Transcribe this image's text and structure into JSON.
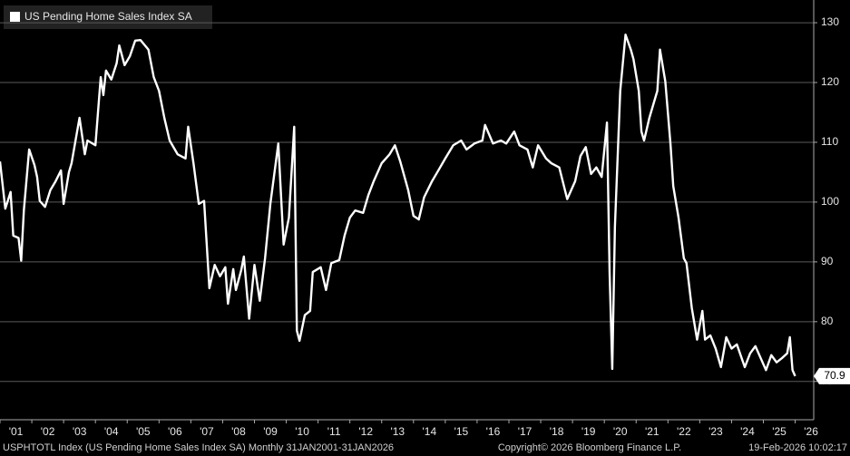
{
  "chart_data": {
    "type": "line",
    "series": [
      {
        "name": "US Pending Home Sales Index SA",
        "color": "#ffffff",
        "x": [
          "2001-01",
          "2001-03",
          "2001-05",
          "2001-06",
          "2001-08",
          "2001-09",
          "2001-10",
          "2001-12",
          "2002-02",
          "2002-03",
          "2002-04",
          "2002-06",
          "2002-08",
          "2002-10",
          "2002-12",
          "2003-01",
          "2003-03",
          "2003-04",
          "2003-07",
          "2003-09",
          "2003-10",
          "2004-01",
          "2004-03",
          "2004-04",
          "2004-05",
          "2004-07",
          "2004-09",
          "2004-10",
          "2004-12",
          "2005-02",
          "2005-04",
          "2005-06",
          "2005-09",
          "2005-11",
          "2006-01",
          "2006-03",
          "2006-05",
          "2006-08",
          "2006-11",
          "2006-12",
          "2007-02",
          "2007-04",
          "2007-06",
          "2007-08",
          "2007-10",
          "2007-12",
          "2008-02",
          "2008-03",
          "2008-05",
          "2008-06",
          "2008-08",
          "2008-09",
          "2008-11",
          "2009-01",
          "2009-03",
          "2009-05",
          "2009-07",
          "2009-10",
          "2009-12",
          "2010-02",
          "2010-04",
          "2010-05",
          "2010-06",
          "2010-08",
          "2010-10",
          "2010-11",
          "2011-02",
          "2011-04",
          "2011-06",
          "2011-09",
          "2011-11",
          "2012-01",
          "2012-03",
          "2012-06",
          "2012-08",
          "2012-10",
          "2013-01",
          "2013-04",
          "2013-06",
          "2013-08",
          "2013-11",
          "2014-01",
          "2014-03",
          "2014-05",
          "2014-08",
          "2014-10",
          "2015-01",
          "2015-04",
          "2015-07",
          "2015-09",
          "2015-12",
          "2016-03",
          "2016-04",
          "2016-07",
          "2016-10",
          "2016-12",
          "2017-03",
          "2017-05",
          "2017-08",
          "2017-10",
          "2017-12",
          "2018-03",
          "2018-05",
          "2018-08",
          "2018-11",
          "2019-02",
          "2019-04",
          "2019-06",
          "2019-08",
          "2019-10",
          "2019-12",
          "2020-02",
          "2020-03",
          "2020-04",
          "2020-05",
          "2020-07",
          "2020-09",
          "2020-11",
          "2020-12",
          "2021-02",
          "2021-03",
          "2021-04",
          "2021-06",
          "2021-08",
          "2021-09",
          "2021-10",
          "2021-12",
          "2022-02",
          "2022-03",
          "2022-05",
          "2022-07",
          "2022-08",
          "2022-10",
          "2022-12",
          "2023-02",
          "2023-03",
          "2023-05",
          "2023-07",
          "2023-09",
          "2023-11",
          "2024-01",
          "2024-03",
          "2024-06",
          "2024-08",
          "2024-10",
          "2024-12",
          "2025-02",
          "2025-04",
          "2025-06",
          "2025-08",
          "2025-10",
          "2025-11",
          "2025-12",
          "2026-01"
        ],
        "values": [
          106.8,
          98.9,
          101.7,
          94.4,
          94,
          90.2,
          98.6,
          108.8,
          106.2,
          104.2,
          100.2,
          99.2,
          102,
          103.5,
          105.3,
          99.7,
          105,
          106.5,
          114.1,
          108,
          110.3,
          109.5,
          120.9,
          117.9,
          122,
          120.5,
          123.2,
          126.2,
          122.9,
          124.4,
          127,
          127.1,
          125.5,
          120.9,
          118.6,
          114.1,
          110.3,
          108,
          107.3,
          112.6,
          106.5,
          99.7,
          100.2,
          85.6,
          89.5,
          87.6,
          89.1,
          83,
          88.8,
          85.3,
          88.6,
          90.9,
          80.5,
          89.5,
          83.5,
          90.6,
          99.7,
          109.8,
          92.9,
          97.4,
          112.6,
          78.5,
          76.8,
          81.1,
          81.8,
          88.3,
          89.1,
          85.3,
          89.8,
          90.3,
          94.4,
          97.4,
          98.6,
          98.2,
          101.2,
          103.5,
          106.5,
          108,
          109.5,
          106.8,
          102,
          97.7,
          97.1,
          100.8,
          103.5,
          105,
          107.3,
          109.5,
          110.3,
          108.8,
          109.8,
          110.3,
          112.9,
          109.8,
          110.3,
          109.8,
          111.8,
          109.5,
          108.8,
          105.8,
          109.5,
          107.3,
          106.5,
          105.8,
          100.5,
          103.5,
          107.7,
          109.2,
          104.7,
          105.8,
          104.2,
          113.3,
          88,
          72.1,
          95.9,
          118.6,
          128,
          125.5,
          123.9,
          118.6,
          111.8,
          110.3,
          114.1,
          117.1,
          118.6,
          125.5,
          120.2,
          109.5,
          102.7,
          97.4,
          90.6,
          89.8,
          82.3,
          77,
          81.8,
          77,
          77.7,
          75.5,
          72.4,
          77.4,
          75.5,
          76.2,
          72.4,
          74.7,
          75.9,
          73.9,
          71.9,
          74.4,
          73.2,
          73.9,
          74.7,
          77.4,
          71.9,
          70.9
        ]
      }
    ],
    "xlim": [
      "2001-01",
      "2026-08"
    ],
    "xticks": [
      {
        "value": "2001-01",
        "label": "'01"
      },
      {
        "value": "2002-01",
        "label": "'02"
      },
      {
        "value": "2003-01",
        "label": "'03"
      },
      {
        "value": "2004-01",
        "label": "'04"
      },
      {
        "value": "2005-01",
        "label": "'05"
      },
      {
        "value": "2006-01",
        "label": "'06"
      },
      {
        "value": "2007-01",
        "label": "'07"
      },
      {
        "value": "2008-01",
        "label": "'08"
      },
      {
        "value": "2009-01",
        "label": "'09"
      },
      {
        "value": "2010-01",
        "label": "'10"
      },
      {
        "value": "2011-01",
        "label": "'11"
      },
      {
        "value": "2012-01",
        "label": "'12"
      },
      {
        "value": "2013-01",
        "label": "'13"
      },
      {
        "value": "2014-01",
        "label": "'14"
      },
      {
        "value": "2015-01",
        "label": "'15"
      },
      {
        "value": "2016-01",
        "label": "'16"
      },
      {
        "value": "2017-01",
        "label": "'17"
      },
      {
        "value": "2018-01",
        "label": "'18"
      },
      {
        "value": "2019-01",
        "label": "'19"
      },
      {
        "value": "2020-01",
        "label": "'20"
      },
      {
        "value": "2021-01",
        "label": "'21"
      },
      {
        "value": "2022-01",
        "label": "'22"
      },
      {
        "value": "2023-01",
        "label": "'23"
      },
      {
        "value": "2024-01",
        "label": "'24"
      },
      {
        "value": "2025-01",
        "label": "'25"
      },
      {
        "value": "2026-01",
        "label": "'26"
      }
    ],
    "ylim": [
      63.6,
      133.8
    ],
    "yticks": [
      70,
      80,
      90,
      100,
      110,
      120,
      130
    ],
    "grid": true,
    "legend": "upper left",
    "footer": [
      "USPHTOTL Index (US Pending Home Sales Index SA) Monthly 31JAN2001-31JAN2026",
      "Copyright© 2026 Bloomberg Finance L.P.",
      "19-Feb-2026 10:02:17"
    ]
  }
}
